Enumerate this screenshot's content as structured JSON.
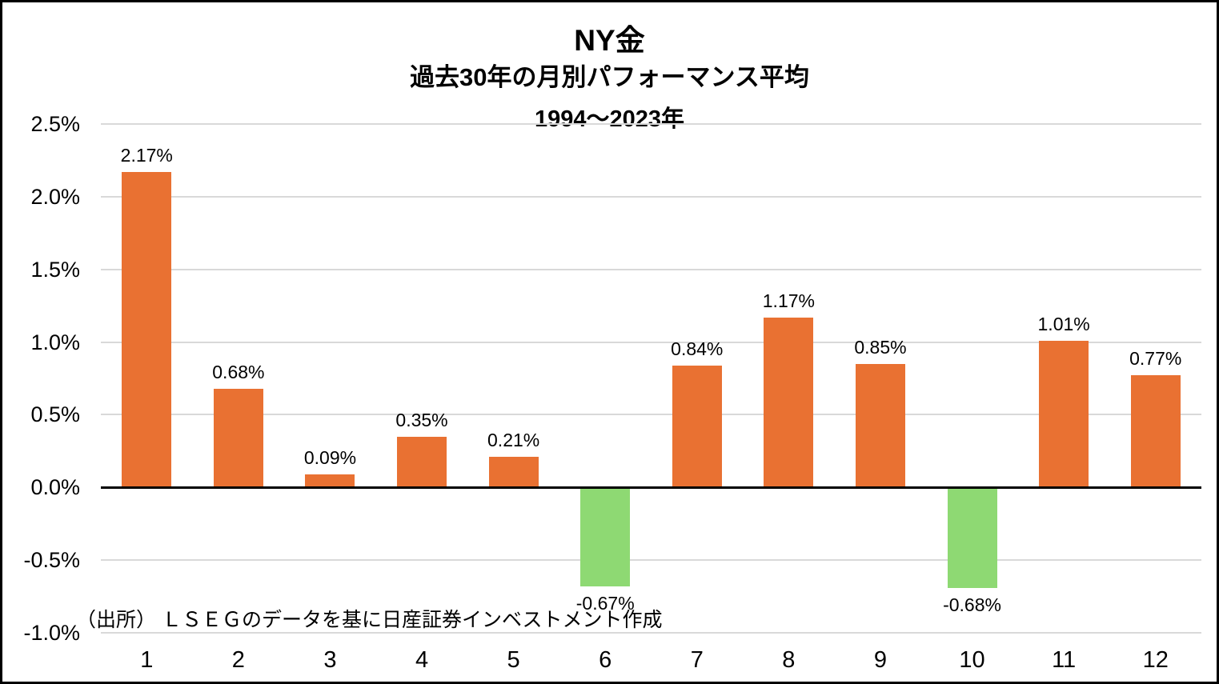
{
  "header": {
    "title": "NY金",
    "subtitle": "過去30年の月別パフォーマンス平均",
    "period": "1994～2023年"
  },
  "footer": {
    "source": "（出所） ＬＳＥＧのデータを基に日産証券インベストメント作成"
  },
  "chart_data": {
    "type": "bar",
    "title": "NY金",
    "subtitle": "過去30年の月別パフォーマンス平均",
    "period": "1994～2023年",
    "categories": [
      "1",
      "2",
      "3",
      "4",
      "5",
      "6",
      "7",
      "8",
      "9",
      "10",
      "11",
      "12"
    ],
    "values": [
      2.17,
      0.68,
      0.09,
      0.35,
      0.21,
      -0.67,
      0.84,
      1.17,
      0.85,
      -0.68,
      1.01,
      0.77
    ],
    "value_labels": [
      "2.17%",
      "0.68%",
      "0.09%",
      "0.35%",
      "0.21%",
      "-0.67%",
      "0.84%",
      "1.17%",
      "0.85%",
      "-0.68%",
      "1.01%",
      "0.77%"
    ],
    "xlabel": "",
    "ylabel": "",
    "ylim": [
      -1.0,
      2.5
    ],
    "y_ticks": [
      {
        "value": 2.5,
        "label": "2.5%"
      },
      {
        "value": 2.0,
        "label": "2.0%"
      },
      {
        "value": 1.5,
        "label": "1.5%"
      },
      {
        "value": 1.0,
        "label": "1.0%"
      },
      {
        "value": 0.5,
        "label": "0.5%"
      },
      {
        "value": 0.0,
        "label": "0.0%"
      },
      {
        "value": -0.5,
        "label": "-0.5%"
      },
      {
        "value": -1.0,
        "label": "-1.0%"
      }
    ],
    "grid": "horizontal",
    "legend": "none",
    "colors": {
      "positive": "#E97132",
      "negative": "#8ED973",
      "gridline": "#D9D9D9",
      "zero_axis": "#000000",
      "text": "#000000"
    }
  }
}
